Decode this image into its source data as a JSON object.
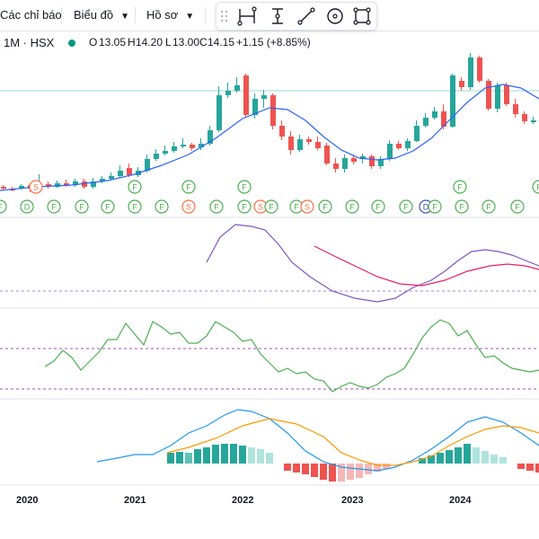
{
  "toolbar": {
    "indicators_label": "Các chỉ báo",
    "chart_label": "Biểu đồ",
    "profile_label": "Hồ sơ",
    "drawing_tools": [
      "line-segment-icon",
      "date-range-icon",
      "trend-line-icon",
      "circle-target-icon",
      "rectangle-icon"
    ]
  },
  "legend": {
    "interval_symbol": "1M · HSX",
    "open_label": "O",
    "open_value": "13.05",
    "high_label": "H",
    "high_value": "14.20",
    "low_label": "L",
    "low_value": "13.00",
    "close_label": "C",
    "close_value": "14.15",
    "change": "+1.15 (+8.85%)",
    "status_color": "#089981"
  },
  "colors": {
    "up": "#26a69a",
    "down": "#ef5350",
    "ma_line": "#2962ff",
    "rsi_line": "#7e57c2",
    "rsi_ma": "#e91e63",
    "stoch_line": "#4caf50",
    "macd_line": "#2196f3",
    "signal_line": "#ff9800",
    "event_green": "#4caf50",
    "event_orange": "#ff7043",
    "event_blue": "#3f51b5"
  },
  "x_axis": {
    "labels": [
      "2020",
      "2021",
      "2022",
      "2023",
      "2024"
    ]
  },
  "chart_data": {
    "type": "candlestick",
    "interval": "1M",
    "exchange": "HSX",
    "x_labels": [
      "2020",
      "2021",
      "2022",
      "2023",
      "2024"
    ],
    "last_bar": {
      "open": 13.05,
      "high": 14.2,
      "low": 13.0,
      "close": 14.15,
      "change": 1.15,
      "change_pct": 8.85
    },
    "indicator_panes": [
      "RSI",
      "Stochastic",
      "MACD"
    ],
    "event_markers": [
      "F",
      "S",
      "D"
    ]
  }
}
